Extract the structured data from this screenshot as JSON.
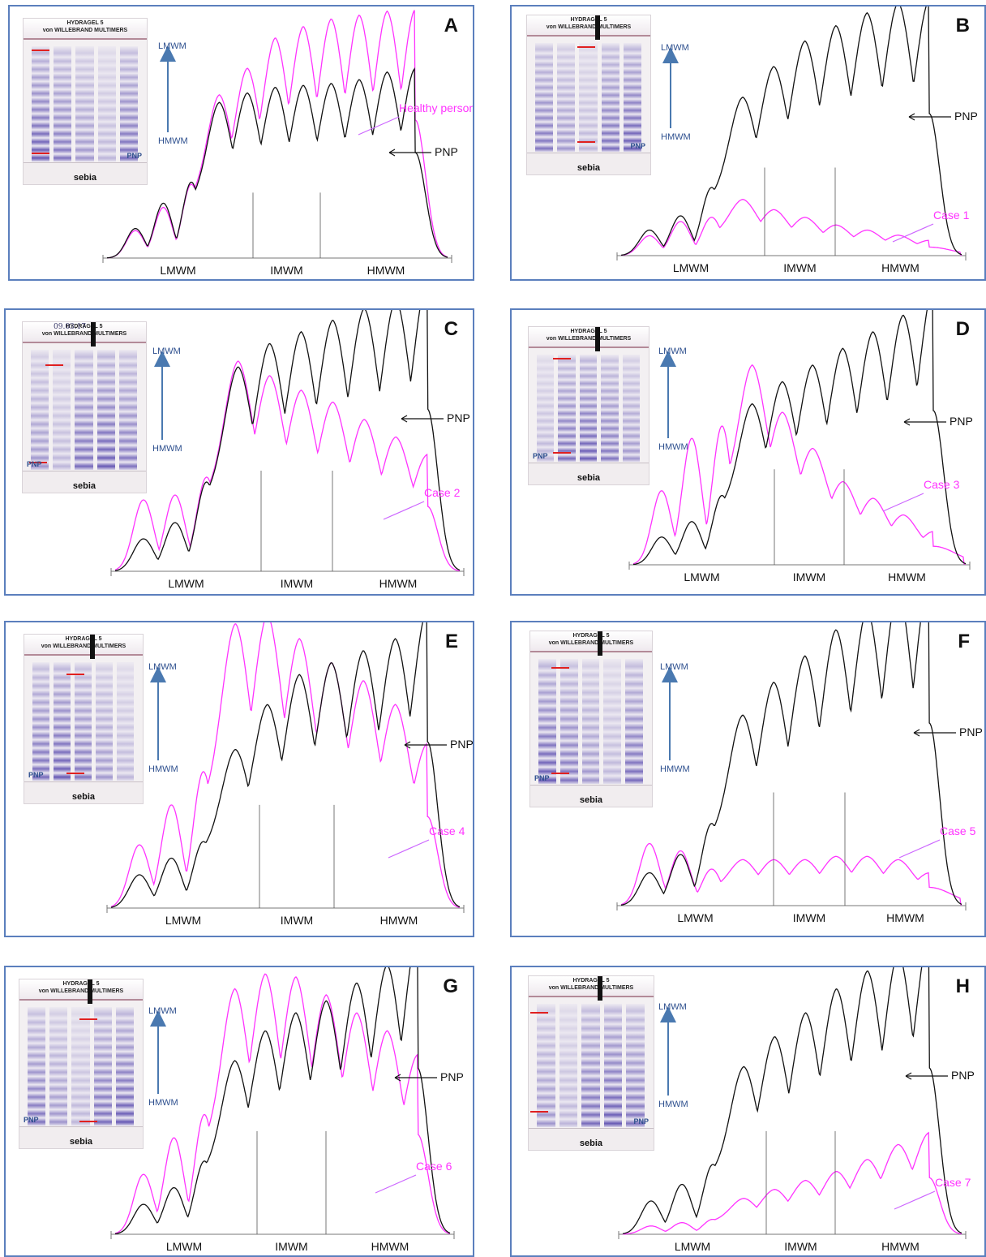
{
  "colors": {
    "pnp": "#111111",
    "case": "#ff33ff",
    "frame": "#5b7fbd",
    "arrow": "#4a79b0",
    "gel_band": "#4a3aa8"
  },
  "common": {
    "gel_header_line1": "HYDRAGEL 5",
    "gel_header_line2": "von WILLEBRAND MULTIMERS",
    "gel_logo": "sebia",
    "gel_pnp_label": "PNP",
    "arrow_top_label": "LMWM",
    "arrow_bottom_label": "HMWM",
    "region_labels": [
      "LMWM",
      "IMWM",
      "HMWM"
    ],
    "reference_label": "PNP"
  },
  "panels": [
    {
      "letter": "A",
      "comparison_label": "Healthy person",
      "gel_date": ""
    },
    {
      "letter": "B",
      "comparison_label": "Case 1",
      "gel_date": ""
    },
    {
      "letter": "C",
      "comparison_label": "Case 2",
      "gel_date": "09.03.17"
    },
    {
      "letter": "D",
      "comparison_label": "Case 3",
      "gel_date": ""
    },
    {
      "letter": "E",
      "comparison_label": "Case 4",
      "gel_date": ""
    },
    {
      "letter": "F",
      "comparison_label": "Case 5",
      "gel_date": ""
    },
    {
      "letter": "G",
      "comparison_label": "Case 6",
      "gel_date": ""
    },
    {
      "letter": "H",
      "comparison_label": "Case 7",
      "gel_date": ""
    }
  ],
  "chart_data": [
    {
      "type": "line",
      "title": "A",
      "xlabel": "",
      "ylabel": "",
      "x_regions": [
        "LMWM",
        "IMWM",
        "HMWM"
      ],
      "series": [
        {
          "name": "PNP",
          "peaks": [
            28,
            52,
            72,
            82,
            87,
            90,
            91,
            92,
            94,
            98,
            100
          ]
        },
        {
          "name": "Healthy person",
          "peaks": [
            26,
            48,
            70,
            86,
            100,
            116,
            122,
            126,
            128,
            130,
            131
          ]
        }
      ]
    },
    {
      "type": "line",
      "title": "B",
      "xlabel": "",
      "ylabel": "",
      "x_regions": [
        "LMWM",
        "IMWM",
        "HMWM"
      ],
      "series": [
        {
          "name": "PNP",
          "peaks": [
            18,
            28,
            48,
            62,
            74,
            84,
            90,
            95,
            99,
            100
          ]
        },
        {
          "name": "Case 1",
          "peaks": [
            14,
            24,
            27,
            22,
            18,
            15,
            12,
            10,
            8,
            6
          ]
        }
      ]
    },
    {
      "type": "line",
      "title": "C",
      "xlabel": "",
      "ylabel": "",
      "x_regions": [
        "LMWM",
        "IMWM",
        "HMWM"
      ],
      "series": [
        {
          "name": "PNP",
          "peaks": [
            20,
            30,
            55,
            70,
            78,
            82,
            86,
            90,
            93,
            100
          ]
        },
        {
          "name": "Case 2",
          "peaks": [
            44,
            47,
            58,
            72,
            67,
            62,
            58,
            52,
            46,
            40
          ]
        }
      ]
    },
    {
      "type": "line",
      "title": "D",
      "xlabel": "",
      "ylabel": "",
      "x_regions": [
        "LMWM",
        "IMWM",
        "HMWM"
      ],
      "series": [
        {
          "name": "PNP",
          "peaks": [
            18,
            28,
            45,
            58,
            66,
            72,
            78,
            84,
            90,
            100
          ]
        },
        {
          "name": "Case 3",
          "peaks": [
            48,
            82,
            90,
            72,
            55,
            42,
            30,
            24,
            18,
            12
          ]
        }
      ]
    },
    {
      "type": "line",
      "title": "E",
      "xlabel": "",
      "ylabel": "",
      "x_regions": [
        "LMWM",
        "IMWM",
        "HMWM"
      ],
      "series": [
        {
          "name": "PNP",
          "peaks": [
            20,
            30,
            40,
            53,
            68,
            78,
            82,
            86,
            90,
            100
          ]
        },
        {
          "name": "Case 4",
          "peaks": [
            38,
            62,
            82,
            95,
            98,
            90,
            82,
            76,
            68,
            55
          ]
        }
      ]
    },
    {
      "type": "line",
      "title": "F",
      "xlabel": "",
      "ylabel": "",
      "x_regions": [
        "LMWM",
        "IMWM",
        "HMWM"
      ],
      "series": [
        {
          "name": "PNP",
          "peaks": [
            18,
            28,
            45,
            58,
            68,
            76,
            84,
            90,
            96,
            100
          ]
        },
        {
          "name": "Case 5",
          "peaks": [
            34,
            30,
            20,
            14,
            14,
            14,
            15,
            15,
            14,
            10
          ]
        }
      ]
    },
    {
      "type": "line",
      "title": "G",
      "xlabel": "",
      "ylabel": "",
      "x_regions": [
        "LMWM",
        "IMWM",
        "HMWM"
      ],
      "series": [
        {
          "name": "PNP",
          "peaks": [
            18,
            28,
            44,
            58,
            68,
            74,
            78,
            84,
            90,
            100
          ]
        },
        {
          "name": "Case 6",
          "peaks": [
            36,
            58,
            72,
            82,
            87,
            86,
            80,
            74,
            68,
            60
          ]
        }
      ]
    },
    {
      "type": "line",
      "title": "H",
      "xlabel": "",
      "ylabel": "",
      "x_regions": [
        "LMWM",
        "IMWM",
        "HMWM"
      ],
      "series": [
        {
          "name": "PNP",
          "peaks": [
            20,
            30,
            42,
            56,
            66,
            74,
            82,
            88,
            94,
            100
          ]
        },
        {
          "name": "Case 7",
          "peaks": [
            5,
            7,
            9,
            12,
            15,
            18,
            21,
            25,
            30,
            34
          ]
        }
      ]
    }
  ]
}
